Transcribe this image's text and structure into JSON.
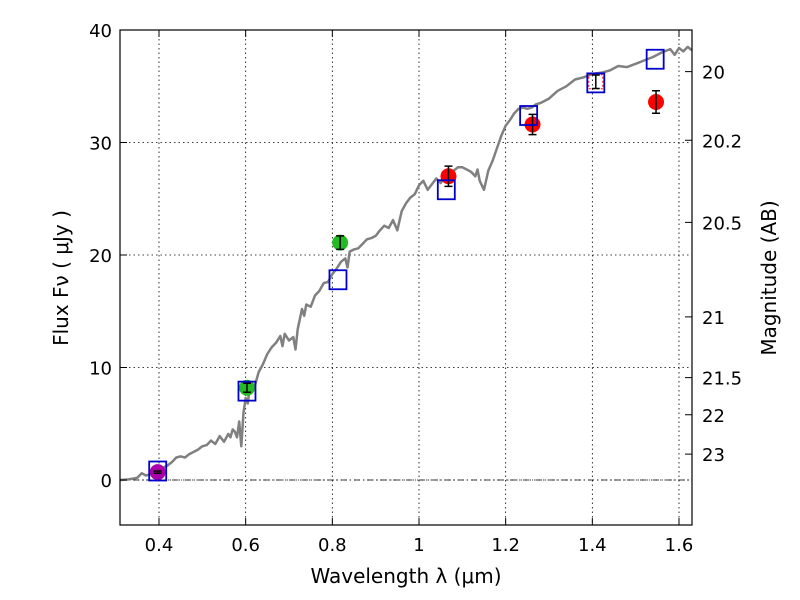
{
  "chart_data": {
    "type": "scatter",
    "xlabel": "Wavelength  λ (μm)",
    "ylabel": "Flux  Fν  ( μJy )",
    "y2label": "Magnitude (AB)",
    "xlim": [
      0.31,
      1.63
    ],
    "ylim": [
      -4,
      40
    ],
    "grid": true,
    "x_ticks": [
      {
        "v": 0.4,
        "label": "0.4"
      },
      {
        "v": 0.6,
        "label": "0.6"
      },
      {
        "v": 0.8,
        "label": "0.8"
      },
      {
        "v": 1.0,
        "label": "1"
      },
      {
        "v": 1.2,
        "label": "1.2"
      },
      {
        "v": 1.4,
        "label": "1.4"
      },
      {
        "v": 1.6,
        "label": "1.6"
      }
    ],
    "y_ticks": [
      {
        "v": 0,
        "label": "0"
      },
      {
        "v": 10,
        "label": "10"
      },
      {
        "v": 20,
        "label": "20"
      },
      {
        "v": 30,
        "label": "30"
      },
      {
        "v": 40,
        "label": "40"
      }
    ],
    "y2_ticks": [
      {
        "flux": 36.3,
        "label": "20"
      },
      {
        "flux": 30.2,
        "label": "20.2"
      },
      {
        "flux": 22.9,
        "label": "20.5"
      },
      {
        "flux": 14.5,
        "label": "21"
      },
      {
        "flux": 9.1,
        "label": "21.5"
      },
      {
        "flux": 5.8,
        "label": "22"
      },
      {
        "flux": 2.3,
        "label": "23"
      }
    ],
    "colors": {
      "model": "#808080",
      "model_points": "#0000cc",
      "red": "#ff0000",
      "green": "#22bb22",
      "magenta": "#aa00aa",
      "errorbar": "#000000"
    },
    "model_spectrum": [
      [
        0.31,
        0.0
      ],
      [
        0.33,
        0.05
      ],
      [
        0.35,
        0.2
      ],
      [
        0.36,
        0.6
      ],
      [
        0.37,
        0.4
      ],
      [
        0.38,
        0.5
      ],
      [
        0.39,
        0.6
      ],
      [
        0.4,
        0.9
      ],
      [
        0.41,
        1.1
      ],
      [
        0.42,
        1.3
      ],
      [
        0.43,
        1.6
      ],
      [
        0.44,
        2.0
      ],
      [
        0.45,
        2.1
      ],
      [
        0.46,
        2.0
      ],
      [
        0.47,
        2.3
      ],
      [
        0.48,
        2.5
      ],
      [
        0.49,
        2.7
      ],
      [
        0.5,
        3.0
      ],
      [
        0.51,
        3.1
      ],
      [
        0.52,
        3.5
      ],
      [
        0.53,
        3.2
      ],
      [
        0.54,
        3.9
      ],
      [
        0.55,
        3.4
      ],
      [
        0.56,
        4.1
      ],
      [
        0.565,
        3.8
      ],
      [
        0.57,
        4.5
      ],
      [
        0.575,
        4.3
      ],
      [
        0.58,
        3.8
      ],
      [
        0.585,
        5.2
      ],
      [
        0.59,
        3.0
      ],
      [
        0.595,
        6.0
      ],
      [
        0.6,
        7.3
      ],
      [
        0.605,
        6.8
      ],
      [
        0.61,
        8.5
      ],
      [
        0.62,
        8.2
      ],
      [
        0.63,
        9.6
      ],
      [
        0.64,
        10.3
      ],
      [
        0.65,
        11.2
      ],
      [
        0.66,
        11.8
      ],
      [
        0.67,
        12.2
      ],
      [
        0.68,
        12.8
      ],
      [
        0.685,
        11.9
      ],
      [
        0.69,
        13.0
      ],
      [
        0.7,
        12.4
      ],
      [
        0.71,
        12.7
      ],
      [
        0.715,
        11.6
      ],
      [
        0.72,
        13.4
      ],
      [
        0.73,
        15.2
      ],
      [
        0.735,
        14.6
      ],
      [
        0.74,
        15.6
      ],
      [
        0.75,
        15.4
      ],
      [
        0.76,
        16.4
      ],
      [
        0.77,
        16.8
      ],
      [
        0.78,
        17.5
      ],
      [
        0.79,
        17.6
      ],
      [
        0.8,
        18.3
      ],
      [
        0.81,
        18.8
      ],
      [
        0.82,
        19.4
      ],
      [
        0.83,
        19.7
      ],
      [
        0.835,
        18.9
      ],
      [
        0.84,
        20.3
      ],
      [
        0.85,
        20.5
      ],
      [
        0.86,
        20.6
      ],
      [
        0.87,
        21.0
      ],
      [
        0.88,
        21.4
      ],
      [
        0.89,
        21.5
      ],
      [
        0.9,
        21.7
      ],
      [
        0.91,
        22.2
      ],
      [
        0.92,
        22.6
      ],
      [
        0.93,
        22.4
      ],
      [
        0.94,
        23.1
      ],
      [
        0.95,
        22.2
      ],
      [
        0.96,
        23.9
      ],
      [
        0.97,
        24.6
      ],
      [
        0.98,
        25.1
      ],
      [
        0.99,
        25.4
      ],
      [
        1.0,
        26.2
      ],
      [
        1.01,
        26.6
      ],
      [
        1.02,
        25.8
      ],
      [
        1.03,
        26.3
      ],
      [
        1.04,
        26.8
      ],
      [
        1.05,
        26.4
      ],
      [
        1.06,
        27.0
      ],
      [
        1.07,
        27.3
      ],
      [
        1.08,
        27.5
      ],
      [
        1.09,
        27.8
      ],
      [
        1.1,
        27.8
      ],
      [
        1.11,
        27.6
      ],
      [
        1.12,
        27.4
      ],
      [
        1.13,
        27.0
      ],
      [
        1.135,
        27.6
      ],
      [
        1.14,
        26.6
      ],
      [
        1.15,
        25.8
      ],
      [
        1.16,
        27.5
      ],
      [
        1.17,
        28.4
      ],
      [
        1.18,
        29.5
      ],
      [
        1.19,
        30.6
      ],
      [
        1.2,
        31.5
      ],
      [
        1.21,
        32.0
      ],
      [
        1.22,
        32.6
      ],
      [
        1.23,
        33.0
      ],
      [
        1.24,
        33.1
      ],
      [
        1.25,
        33.0
      ],
      [
        1.26,
        33.1
      ],
      [
        1.27,
        33.4
      ],
      [
        1.28,
        33.5
      ],
      [
        1.29,
        33.7
      ],
      [
        1.3,
        33.9
      ],
      [
        1.32,
        34.6
      ],
      [
        1.34,
        35.0
      ],
      [
        1.36,
        35.6
      ],
      [
        1.38,
        35.8
      ],
      [
        1.4,
        36.1
      ],
      [
        1.42,
        36.2
      ],
      [
        1.44,
        36.4
      ],
      [
        1.46,
        36.8
      ],
      [
        1.48,
        36.7
      ],
      [
        1.5,
        37.0
      ],
      [
        1.52,
        37.3
      ],
      [
        1.54,
        37.6
      ],
      [
        1.56,
        38.0
      ],
      [
        1.58,
        38.3
      ],
      [
        1.59,
        37.8
      ],
      [
        1.6,
        38.4
      ],
      [
        1.61,
        38.1
      ],
      [
        1.62,
        38.5
      ],
      [
        1.63,
        38.2
      ]
    ],
    "model_points": [
      {
        "x": 0.397,
        "y": 0.8
      },
      {
        "x": 0.603,
        "y": 7.9
      },
      {
        "x": 0.813,
        "y": 17.8
      },
      {
        "x": 1.063,
        "y": 25.8
      },
      {
        "x": 1.253,
        "y": 32.4
      },
      {
        "x": 1.408,
        "y": 35.3
      },
      {
        "x": 1.545,
        "y": 37.4
      }
    ],
    "observed": [
      {
        "x": 0.397,
        "y": 0.7,
        "err": 0.1,
        "color": "#aa00aa"
      },
      {
        "x": 0.603,
        "y": 8.2,
        "err": 0.4,
        "color": "#22bb22"
      },
      {
        "x": 0.818,
        "y": 21.1,
        "err": 0.6,
        "color": "#22bb22"
      },
      {
        "x": 1.068,
        "y": 27.0,
        "err": 0.9,
        "color": "#ff0000"
      },
      {
        "x": 1.262,
        "y": 31.6,
        "err": 0.9,
        "color": "#ff0000"
      },
      {
        "x": 1.408,
        "y": 35.4,
        "err": 0.6,
        "color": "#ff0000",
        "open": true
      },
      {
        "x": 1.547,
        "y": 33.6,
        "err": 1.0,
        "color": "#ff0000"
      }
    ]
  }
}
